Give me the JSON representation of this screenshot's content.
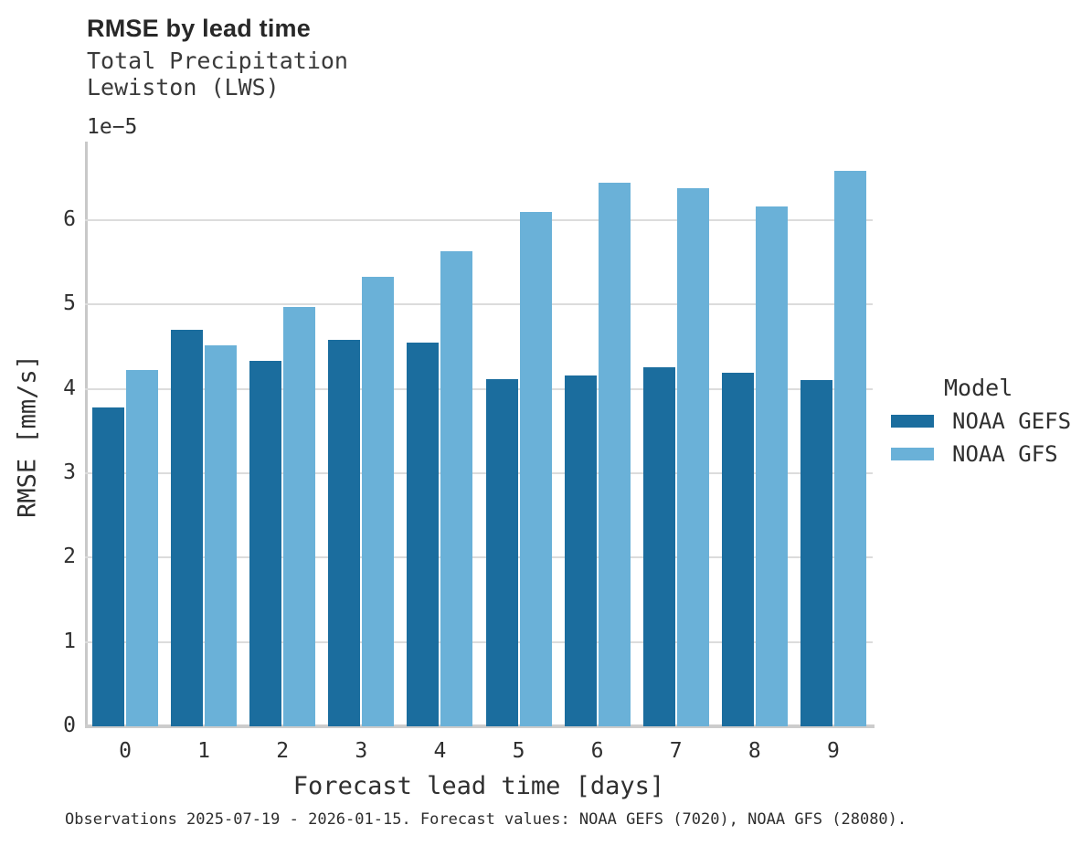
{
  "header": {
    "title": "RMSE by lead time",
    "subtitle_line1": "Total Precipitation",
    "subtitle_line2": "Lewiston (LWS)"
  },
  "axes": {
    "y_offset_label": "1e−5",
    "y_label": "RMSE [mm/s]",
    "x_label": "Forecast lead time [days]"
  },
  "legend": {
    "title": "Model",
    "entries": [
      {
        "label": "NOAA GEFS",
        "color": "#1b6d9e"
      },
      {
        "label": "NOAA GFS",
        "color": "#6ab1d8"
      }
    ]
  },
  "caption": "Observations 2025-07-19 - 2026-01-15. Forecast values: NOAA GEFS (7020), NOAA GFS (28080).",
  "colors": {
    "gefs_bar": "#1b6d9e",
    "gfs_bar": "#6ab1d8",
    "gridline": "#dcdcdc",
    "spine": "#c9c9c9",
    "text": "#2f2f2f"
  },
  "chart_data": {
    "type": "bar",
    "title": "RMSE by lead time",
    "subtitle": [
      "Total Precipitation",
      "Lewiston (LWS)"
    ],
    "xlabel": "Forecast lead time [days]",
    "ylabel": "RMSE [mm/s]",
    "y_scale_note": "values are multiples of 1e-5 (axis offset label)",
    "categories": [
      0,
      1,
      2,
      3,
      4,
      5,
      6,
      7,
      8,
      9
    ],
    "series": [
      {
        "name": "NOAA GEFS",
        "color": "#1b6d9e",
        "values": [
          3.78,
          4.7,
          4.33,
          4.58,
          4.55,
          4.12,
          4.16,
          4.26,
          4.19,
          4.1
        ]
      },
      {
        "name": "NOAA GFS",
        "color": "#6ab1d8",
        "values": [
          4.22,
          4.52,
          4.97,
          5.33,
          5.63,
          6.1,
          6.44,
          6.38,
          6.16,
          6.58
        ]
      }
    ],
    "ylim": [
      0,
      6.93
    ],
    "yticks": [
      0,
      1,
      2,
      3,
      4,
      5,
      6
    ],
    "grid": "horizontal",
    "legend_title": "Model",
    "legend_position": "right"
  }
}
